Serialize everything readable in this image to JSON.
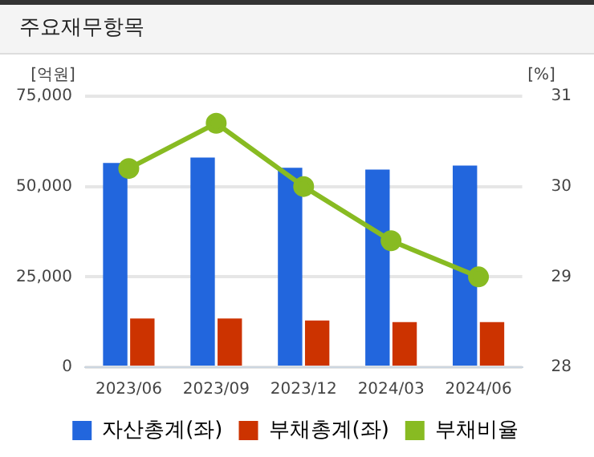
{
  "chart_data": {
    "type": "bar",
    "title": "주요재무항목",
    "ylabel": "[억원]",
    "y2label": "[%]",
    "categories": [
      "2023/06",
      "2023/09",
      "2023/12",
      "2024/03",
      "2024/06"
    ],
    "series": [
      {
        "name": "자산총계(좌)",
        "color": "#2266dd",
        "values": [
          56500,
          58000,
          55200,
          54700,
          55800
        ]
      },
      {
        "name": "부채총계(좌)",
        "color": "#cc3300",
        "values": [
          13500,
          13500,
          12900,
          12500,
          12500
        ]
      },
      {
        "name": "부채비율",
        "type": "line",
        "axis": "y2",
        "color": "#88bb22",
        "values": [
          30.2,
          30.7,
          30.0,
          29.4,
          29.0
        ]
      }
    ],
    "ylim": [
      0,
      75000
    ],
    "yticks": [
      {
        "value": 0,
        "label": "0"
      },
      {
        "value": 25000,
        "label": "25,000"
      },
      {
        "value": 50000,
        "label": "50,000"
      },
      {
        "value": 75000,
        "label": "75,000"
      }
    ],
    "y2lim": [
      28,
      31
    ],
    "y2ticks": [
      28,
      29,
      30,
      31
    ],
    "grid": "y",
    "legend": "bottom",
    "marker": "circle",
    "line_style": "solid"
  }
}
